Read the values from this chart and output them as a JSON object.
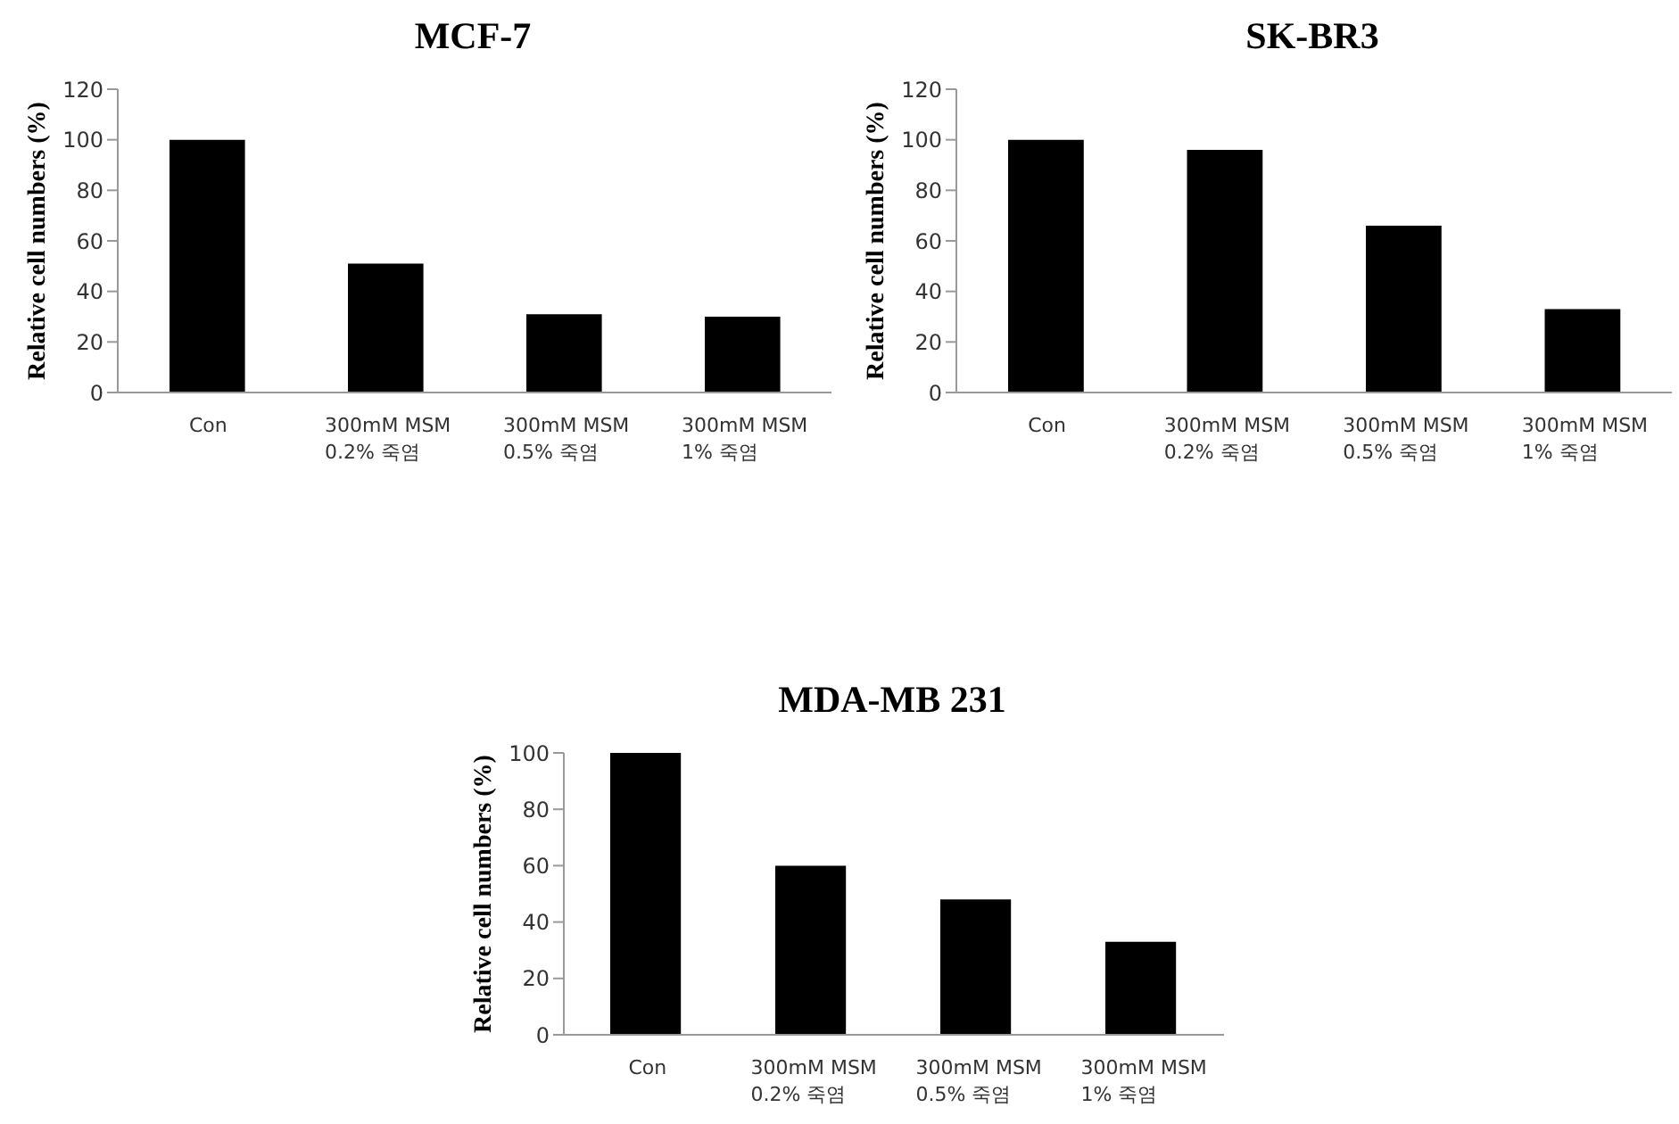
{
  "chart_data": [
    {
      "type": "bar",
      "title": "MCF-7",
      "ylabel": "Relative cell numbers (%)",
      "categories": [
        "Con",
        "300mM MSM\n0.2% 죽염",
        "300mM MSM\n0.5% 죽염",
        "300mM MSM\n1% 죽염"
      ],
      "values": [
        100,
        51,
        31,
        30
      ],
      "color": "#000000",
      "ylim": [
        0,
        120
      ],
      "yticks": [
        0,
        20,
        40,
        60,
        80,
        100,
        120
      ]
    },
    {
      "type": "bar",
      "title": "SK-BR3",
      "ylabel": "Relative cell numbers (%)",
      "categories": [
        "Con",
        "300mM MSM\n0.2% 죽염",
        "300mM MSM\n0.5% 죽염",
        "300mM MSM\n1% 죽염"
      ],
      "values": [
        100,
        96,
        66,
        33
      ],
      "color": "#000000",
      "ylim": [
        0,
        120
      ],
      "yticks": [
        0,
        20,
        40,
        60,
        80,
        100,
        120
      ]
    },
    {
      "type": "bar",
      "title": "MDA-MB 231",
      "ylabel": "Relative cell numbers (%)",
      "categories": [
        "Con",
        "300mM MSM\n0.2% 죽염",
        "300mM MSM\n0.5% 죽염",
        "300mM MSM\n1% 죽염"
      ],
      "values": [
        100,
        60,
        48,
        33
      ],
      "color": "#000000",
      "ylim": [
        0,
        100
      ],
      "yticks": [
        0,
        20,
        40,
        60,
        80,
        100
      ]
    }
  ]
}
